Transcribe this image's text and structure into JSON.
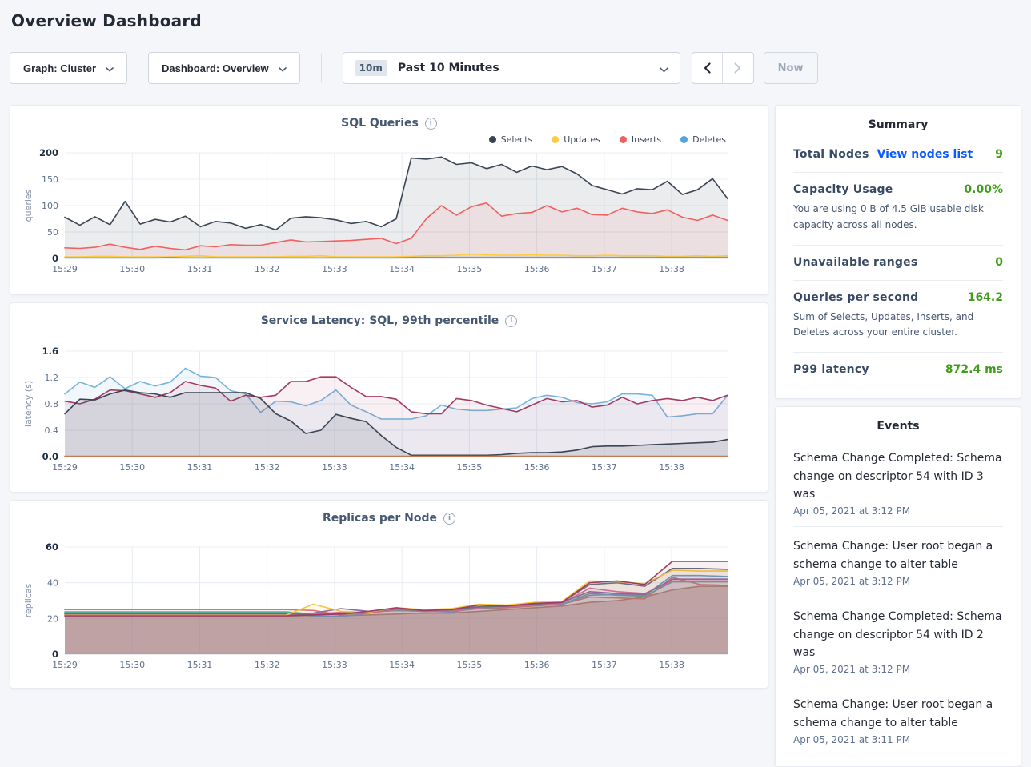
{
  "page": {
    "title": "Overview Dashboard"
  },
  "controls": {
    "graph_dropdown_label": "Graph: Cluster",
    "dashboard_dropdown_label": "Dashboard: Overview",
    "time_badge": "10m",
    "time_range_label": "Past 10 Minutes",
    "now_label": "Now"
  },
  "colors": {
    "accent_green": "#3F9E19",
    "link_blue": "#0A5BFF",
    "selects_navy": "#394455",
    "updates_yellow": "#FFC940",
    "inserts_red": "#EF6161",
    "deletes_blue": "#55A3DD"
  },
  "summary": {
    "title": "Summary",
    "rows": [
      {
        "label": "Total Nodes",
        "link": "View nodes list",
        "value": "9",
        "sub": ""
      },
      {
        "label": "Capacity Usage",
        "link": "",
        "value": "0.00%",
        "sub": "You are using 0 B of 4.5 GiB usable disk capacity across all nodes."
      },
      {
        "label": "Unavailable ranges",
        "link": "",
        "value": "0",
        "sub": ""
      },
      {
        "label": "Queries per second",
        "link": "",
        "value": "164.2",
        "sub": "Sum of Selects, Updates, Inserts, and Deletes across your entire cluster."
      },
      {
        "label": "P99 latency",
        "link": "",
        "value": "872.4 ms",
        "sub": ""
      }
    ]
  },
  "events": {
    "title": "Events",
    "items": [
      {
        "message": "Schema Change Completed: Schema change on descriptor 54 with ID 3 was",
        "timestamp": "Apr 05, 2021 at 3:12 PM"
      },
      {
        "message": "Schema Change: User root began a schema change to alter table",
        "timestamp": "Apr 05, 2021 at 3:12 PM"
      },
      {
        "message": "Schema Change Completed: Schema change on descriptor 54 with ID 2 was",
        "timestamp": "Apr 05, 2021 at 3:12 PM"
      },
      {
        "message": "Schema Change: User root began a schema change to alter table",
        "timestamp": "Apr 05, 2021 at 3:11 PM"
      }
    ]
  },
  "chart_data": [
    {
      "type": "area",
      "title": "SQL Queries",
      "ylabel": "queries",
      "ylim": [
        0,
        200
      ],
      "yticks": [
        0,
        50,
        100,
        150,
        200
      ],
      "ytick_labels": [
        "0",
        "50",
        "100",
        "150",
        "200"
      ],
      "x_tick_labels": [
        "15:29",
        "15:30",
        "15:31",
        "15:32",
        "15:33",
        "15:34",
        "15:35",
        "15:36",
        "15:37",
        "15:38"
      ],
      "x_span_minutes": 9.83,
      "legend": true,
      "series": [
        {
          "name": "Selects",
          "color": "#394455",
          "fill_opacity": 0.1,
          "values": [
            78,
            63,
            79,
            64,
            108,
            65,
            74,
            69,
            80,
            60,
            70,
            67,
            57,
            64,
            54,
            76,
            79,
            77,
            73,
            66,
            70,
            60,
            75,
            190,
            188,
            192,
            178,
            181,
            170,
            178,
            163,
            175,
            168,
            174,
            160,
            138,
            130,
            122,
            132,
            130,
            146,
            121,
            130,
            151,
            113
          ]
        },
        {
          "name": "Inserts",
          "color": "#EF6161",
          "fill_opacity": 0.09,
          "values": [
            20,
            19,
            21,
            27,
            21,
            17,
            23,
            19,
            16,
            24,
            22,
            26,
            25,
            25,
            30,
            35,
            31,
            32,
            33,
            34,
            36,
            38,
            28,
            38,
            75,
            100,
            82,
            98,
            105,
            80,
            85,
            87,
            100,
            88,
            95,
            83,
            82,
            95,
            88,
            85,
            92,
            78,
            72,
            82,
            72
          ]
        },
        {
          "name": "Updates",
          "color": "#FFC940",
          "fill_opacity": 0.12,
          "values": [
            3,
            3,
            4,
            4,
            3,
            3,
            3,
            3,
            4,
            5,
            3,
            3,
            3,
            3,
            3,
            4,
            4,
            5,
            3,
            3,
            3,
            3,
            3,
            4,
            5,
            5,
            6,
            8,
            7,
            6,
            6,
            7,
            6,
            6,
            5,
            5,
            6,
            5,
            5,
            5,
            4,
            4,
            5,
            4,
            5
          ]
        },
        {
          "name": "Deletes",
          "color": "#55A3DD",
          "fill_opacity": 0.15,
          "values": [
            1,
            1,
            1,
            1,
            1,
            1,
            1,
            2,
            1,
            1,
            1,
            1,
            1,
            1,
            1,
            1,
            1,
            1,
            1,
            1,
            1,
            1,
            1,
            2,
            2,
            2,
            2,
            2,
            2,
            2,
            2,
            2,
            2,
            2,
            2,
            2,
            2,
            2,
            2,
            2,
            2,
            2,
            2,
            2,
            2
          ]
        }
      ],
      "legend_order": [
        "Selects",
        "Updates",
        "Inserts",
        "Deletes"
      ]
    },
    {
      "type": "area",
      "title": "Service Latency: SQL, 99th percentile",
      "ylabel": "latency (s)",
      "ylim": [
        0,
        1.6
      ],
      "yticks": [
        0,
        0.4,
        0.8,
        1.2,
        1.6
      ],
      "ytick_labels": [
        "0.0",
        "0.4",
        "0.8",
        "1.2",
        "1.6"
      ],
      "x_tick_labels": [
        "15:29",
        "15:30",
        "15:31",
        "15:32",
        "15:33",
        "15:34",
        "15:35",
        "15:36",
        "15:37",
        "15:38"
      ],
      "x_span_minutes": 9.83,
      "legend": false,
      "series": [
        {
          "name": "light-blue",
          "color": "#79B3DC",
          "fill_opacity": 0.1,
          "values": [
            0.95,
            1.13,
            1.05,
            1.21,
            1.03,
            1.14,
            1.07,
            1.13,
            1.34,
            1.22,
            1.2,
            1.0,
            0.95,
            0.67,
            0.84,
            0.83,
            0.77,
            0.85,
            1.01,
            0.78,
            0.68,
            0.57,
            0.57,
            0.57,
            0.62,
            0.78,
            0.72,
            0.7,
            0.7,
            0.72,
            0.74,
            0.88,
            0.93,
            0.9,
            0.82,
            0.8,
            0.83,
            0.95,
            0.95,
            0.93,
            0.6,
            0.62,
            0.65,
            0.65,
            0.93
          ]
        },
        {
          "name": "maroon",
          "color": "#A23B61",
          "fill_opacity": 0.08,
          "values": [
            0.84,
            0.8,
            0.87,
            1.01,
            1.0,
            0.95,
            0.9,
            0.97,
            1.14,
            1.08,
            1.04,
            0.84,
            0.93,
            0.9,
            0.93,
            1.14,
            1.14,
            1.21,
            1.21,
            1.05,
            0.91,
            0.91,
            0.87,
            0.68,
            0.65,
            0.65,
            0.88,
            0.85,
            0.78,
            0.73,
            0.68,
            0.78,
            0.88,
            0.83,
            0.85,
            0.75,
            0.78,
            0.9,
            0.8,
            0.85,
            0.88,
            0.85,
            0.9,
            0.85,
            0.93
          ]
        },
        {
          "name": "navy",
          "color": "#394455",
          "fill_opacity": 0.12,
          "values": [
            0.65,
            0.87,
            0.86,
            0.95,
            1.01,
            0.97,
            0.95,
            0.9,
            0.97,
            0.97,
            0.97,
            0.97,
            0.97,
            0.88,
            0.65,
            0.54,
            0.35,
            0.4,
            0.64,
            0.58,
            0.53,
            0.32,
            0.14,
            0.02,
            0.02,
            0.02,
            0.02,
            0.02,
            0.02,
            0.03,
            0.05,
            0.06,
            0.06,
            0.07,
            0.1,
            0.15,
            0.16,
            0.16,
            0.17,
            0.18,
            0.19,
            0.2,
            0.21,
            0.22,
            0.26
          ]
        },
        {
          "name": "orange-baseline",
          "color": "#C47A53",
          "fill_opacity": 0,
          "values": [
            0.005
          ]
        }
      ]
    },
    {
      "type": "area",
      "title": "Replicas per Node",
      "ylabel": "replicas",
      "ylim": [
        0,
        60
      ],
      "yticks": [
        0,
        20,
        40,
        60
      ],
      "ytick_labels": [
        "0",
        "20",
        "40",
        "60"
      ],
      "x_tick_labels": [
        "15:29",
        "15:30",
        "15:31",
        "15:32",
        "15:33",
        "15:34",
        "15:35",
        "15:36",
        "15:37",
        "15:38"
      ],
      "x_span_minutes": 9.83,
      "legend": false,
      "series": [
        {
          "name": "brown",
          "color": "#AE7C6B",
          "fill_opacity": 0.38,
          "values": [
            21,
            21,
            21,
            21,
            21,
            21,
            21,
            21,
            21,
            21,
            21.5,
            22,
            22.5,
            23,
            23,
            24,
            25,
            26,
            27,
            29,
            30,
            32,
            36,
            38,
            38
          ]
        },
        {
          "name": "red",
          "color": "#E06C6C",
          "fill_opacity": 0.08,
          "values": [
            25,
            25,
            25,
            25,
            25,
            25,
            25,
            25,
            25,
            24.5,
            22,
            23.5,
            24.5,
            24,
            24,
            25.5,
            26,
            27,
            28,
            32,
            31.5,
            31,
            43,
            39,
            38.5
          ]
        },
        {
          "name": "green",
          "color": "#47B08A",
          "fill_opacity": 0.08,
          "values": [
            23.7,
            23.7,
            23.7,
            23.7,
            23.7,
            23.7,
            23.7,
            23.7,
            23.7,
            22.5,
            23,
            23.5,
            24.5,
            24,
            24.5,
            25.5,
            26.5,
            27.5,
            28,
            34,
            33,
            32.5,
            40.5,
            40.5,
            40.5
          ]
        },
        {
          "name": "teal-blue",
          "color": "#619FCE",
          "fill_opacity": 0.08,
          "values": [
            23,
            23,
            23,
            23,
            23,
            23,
            23,
            23,
            23,
            21.5,
            21,
            23,
            25,
            24.5,
            23.5,
            26,
            26.5,
            27.5,
            28,
            33,
            33.5,
            33,
            44,
            44,
            43.5
          ]
        },
        {
          "name": "magenta",
          "color": "#D96BA8",
          "fill_opacity": 0.08,
          "values": [
            22,
            22,
            22,
            22,
            22,
            22,
            22,
            22,
            22,
            22.5,
            23.5,
            23,
            25,
            24.5,
            24,
            26,
            26.5,
            27.5,
            28.5,
            37,
            35,
            34,
            41,
            41,
            41
          ]
        },
        {
          "name": "purple",
          "color": "#8A63A8",
          "fill_opacity": 0.08,
          "values": [
            22.5,
            22.5,
            22.5,
            22.5,
            22.5,
            22.5,
            22.5,
            22.5,
            22.5,
            23,
            25.5,
            24,
            25.5,
            24.5,
            25,
            26.5,
            27,
            28,
            29,
            35,
            34,
            33.5,
            42,
            42,
            42
          ]
        },
        {
          "name": "gray",
          "color": "#606C83",
          "fill_opacity": 0.08,
          "values": [
            22.8,
            22.8,
            22.8,
            22.8,
            22.8,
            22.8,
            22.8,
            22.8,
            22.8,
            22,
            23,
            23.5,
            25.5,
            24.5,
            25,
            26.5,
            27,
            28,
            29,
            39,
            40,
            38,
            48,
            48,
            47.5
          ]
        },
        {
          "name": "yellow",
          "color": "#F8C43A",
          "fill_opacity": 0.08,
          "values": [
            21.8,
            21.8,
            21.8,
            21.8,
            21.8,
            21.8,
            21.8,
            21.8,
            21.8,
            28,
            24,
            23.5,
            26,
            25,
            25.5,
            28,
            27.5,
            29,
            29.5,
            41,
            40.5,
            39.5,
            47,
            46.5,
            46.5
          ]
        },
        {
          "name": "maroon",
          "color": "#9E3D64",
          "fill_opacity": 0.08,
          "values": [
            21.5,
            21.5,
            21.5,
            21.5,
            21.5,
            21.5,
            21.5,
            21.5,
            21.5,
            22,
            22.5,
            24,
            26,
            24.5,
            25,
            27.5,
            27,
            28.5,
            29,
            40,
            41,
            39,
            52,
            52,
            52
          ]
        }
      ]
    }
  ]
}
